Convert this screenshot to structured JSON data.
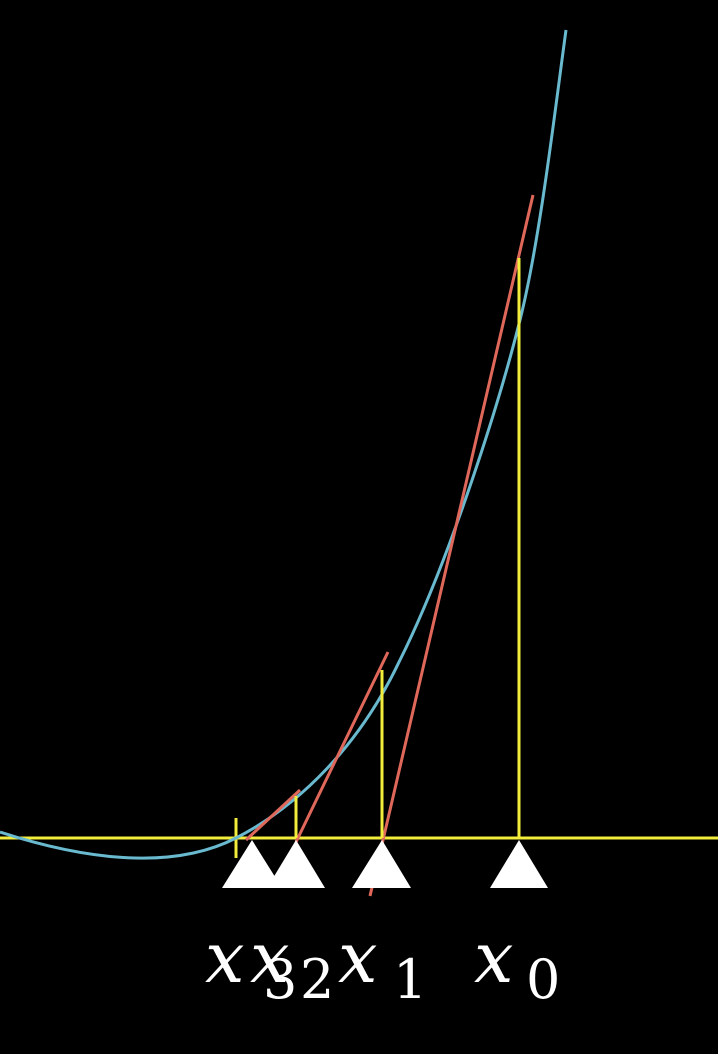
{
  "scene": {
    "description_free": true,
    "colors": {
      "background": "#000000",
      "axis": "#f2ec3a",
      "curve": "#69b9cf",
      "tangent": "#e0685a",
      "marker": "#ffffff"
    }
  },
  "iterations": [
    {
      "label": "x",
      "sub": "0"
    },
    {
      "label": "x",
      "sub": "1"
    },
    {
      "label": "x",
      "sub": "2"
    },
    {
      "label": "x",
      "sub": "3"
    }
  ]
}
